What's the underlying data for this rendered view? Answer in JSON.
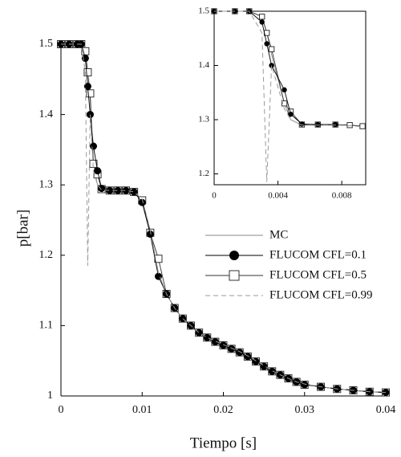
{
  "chart_data": [
    {
      "type": "line",
      "xlabel": "Tiempo [s]",
      "ylabel": "p[bar]",
      "x": [
        0,
        0.001,
        0.002,
        0.0025,
        0.003,
        0.0033,
        0.0036,
        0.004,
        0.0045,
        0.005,
        0.006,
        0.007,
        0.008,
        0.009,
        0.01,
        0.011,
        0.012,
        0.013,
        0.014,
        0.015,
        0.016,
        0.017,
        0.018,
        0.019,
        0.02,
        0.021,
        0.022,
        0.023,
        0.024,
        0.025,
        0.026,
        0.027,
        0.028,
        0.029,
        0.03,
        0.032,
        0.034,
        0.036,
        0.038,
        0.04
      ],
      "series": [
        {
          "name": "MC",
          "color": "#888888",
          "marker": "none",
          "dash": false,
          "values": [
            1.5,
            1.5,
            1.5,
            1.5,
            1.49,
            1.46,
            1.42,
            1.33,
            1.3,
            1.293,
            1.292,
            1.292,
            1.292,
            1.29,
            1.28,
            1.235,
            1.175,
            1.145,
            1.125,
            1.11,
            1.1,
            1.09,
            1.083,
            1.078,
            1.073,
            1.068,
            1.063,
            1.057,
            1.05,
            1.043,
            1.036,
            1.03,
            1.025,
            1.02,
            1.017,
            1.013,
            1.01,
            1.008,
            1.006,
            1.005
          ]
        },
        {
          "name": "FLUCOM  CFL=0.5",
          "color": "#333333",
          "marker": "square",
          "dash": false,
          "values": [
            1.5,
            1.5,
            1.5,
            1.5,
            1.49,
            1.46,
            1.43,
            1.33,
            1.315,
            1.294,
            1.292,
            1.292,
            1.292,
            1.29,
            1.278,
            1.232,
            1.195,
            1.145,
            1.125,
            1.11,
            1.1,
            1.09,
            1.083,
            1.077,
            1.072,
            1.067,
            1.062,
            1.056,
            1.049,
            1.042,
            1.035,
            1.03,
            1.025,
            1.02,
            1.016,
            1.013,
            1.01,
            1.008,
            1.006,
            1.005
          ]
        },
        {
          "name": "FLUCOM  CFL=0.1",
          "color": "#000000",
          "marker": "circle",
          "dash": false,
          "values": [
            1.5,
            1.5,
            1.5,
            1.5,
            1.48,
            1.44,
            1.4,
            1.355,
            1.32,
            1.295,
            1.292,
            1.292,
            1.292,
            1.29,
            1.275,
            1.23,
            1.17,
            1.145,
            1.125,
            1.11,
            1.1,
            1.09,
            1.083,
            1.077,
            1.072,
            1.067,
            1.062,
            1.056,
            1.049,
            1.042,
            1.035,
            1.03,
            1.025,
            1.02,
            1.016,
            1.013,
            1.01,
            1.008,
            1.006,
            1.005
          ]
        },
        {
          "name": "FLUCOM  CFL=0.99",
          "color": "#999999",
          "marker": "none",
          "dash": true,
          "values": [
            1.5,
            1.5,
            1.5,
            1.5,
            1.46,
            1.185,
            1.4,
            1.32,
            1.3,
            1.293,
            1.292,
            1.292,
            1.292,
            1.29,
            1.28,
            1.235,
            1.175,
            1.145,
            1.125,
            1.11,
            1.1,
            1.09,
            1.083,
            1.078,
            1.073,
            1.068,
            1.063,
            1.057,
            1.05,
            1.043,
            1.036,
            1.03,
            1.025,
            1.02,
            1.017,
            1.013,
            1.01,
            1.008,
            1.006,
            1.005
          ]
        }
      ],
      "xlim": [
        0,
        0.04
      ],
      "xticks": [
        0,
        0.01,
        0.02,
        0.03,
        0.04
      ],
      "ylim": [
        1,
        1.5
      ],
      "yticks": [
        1,
        1.1,
        1.2,
        1.3,
        1.4,
        1.5
      ],
      "legend": "right"
    },
    {
      "type": "line",
      "x": [
        0,
        0.0013,
        0.0022,
        0.003,
        0.0033,
        0.0036,
        0.0044,
        0.0048,
        0.0055,
        0.0065,
        0.0076,
        0.0085,
        0.0093
      ],
      "series": [
        {
          "color": "#888888",
          "marker": "none",
          "dash": false,
          "values": [
            1.5,
            1.5,
            1.5,
            1.49,
            1.46,
            1.42,
            1.33,
            1.3,
            1.29,
            1.29,
            1.29,
            1.29,
            1.288
          ]
        },
        {
          "color": "#333333",
          "marker": "square",
          "dash": false,
          "values": [
            1.5,
            1.5,
            1.5,
            1.49,
            1.46,
            1.43,
            1.33,
            1.315,
            1.291,
            1.291,
            1.291,
            1.29,
            1.288
          ]
        },
        {
          "color": "#000000",
          "marker": "circle",
          "dash": false,
          "values": [
            1.5,
            1.5,
            1.5,
            1.48,
            1.44,
            1.4,
            1.355,
            1.31,
            1.292,
            1.291,
            1.291,
            null,
            null
          ]
        },
        {
          "color": "#999999",
          "marker": "none",
          "dash": true,
          "values": [
            1.5,
            1.5,
            1.5,
            1.46,
            1.185,
            1.4,
            1.32,
            1.3,
            1.29,
            1.29,
            1.29,
            1.289,
            1.287
          ]
        }
      ],
      "xlim": [
        0,
        0.0095
      ],
      "xticks": [
        0,
        0.004,
        0.008
      ],
      "ylim": [
        1.18,
        1.5
      ],
      "yticks": [
        1.2,
        1.3,
        1.4,
        1.5
      ]
    }
  ]
}
